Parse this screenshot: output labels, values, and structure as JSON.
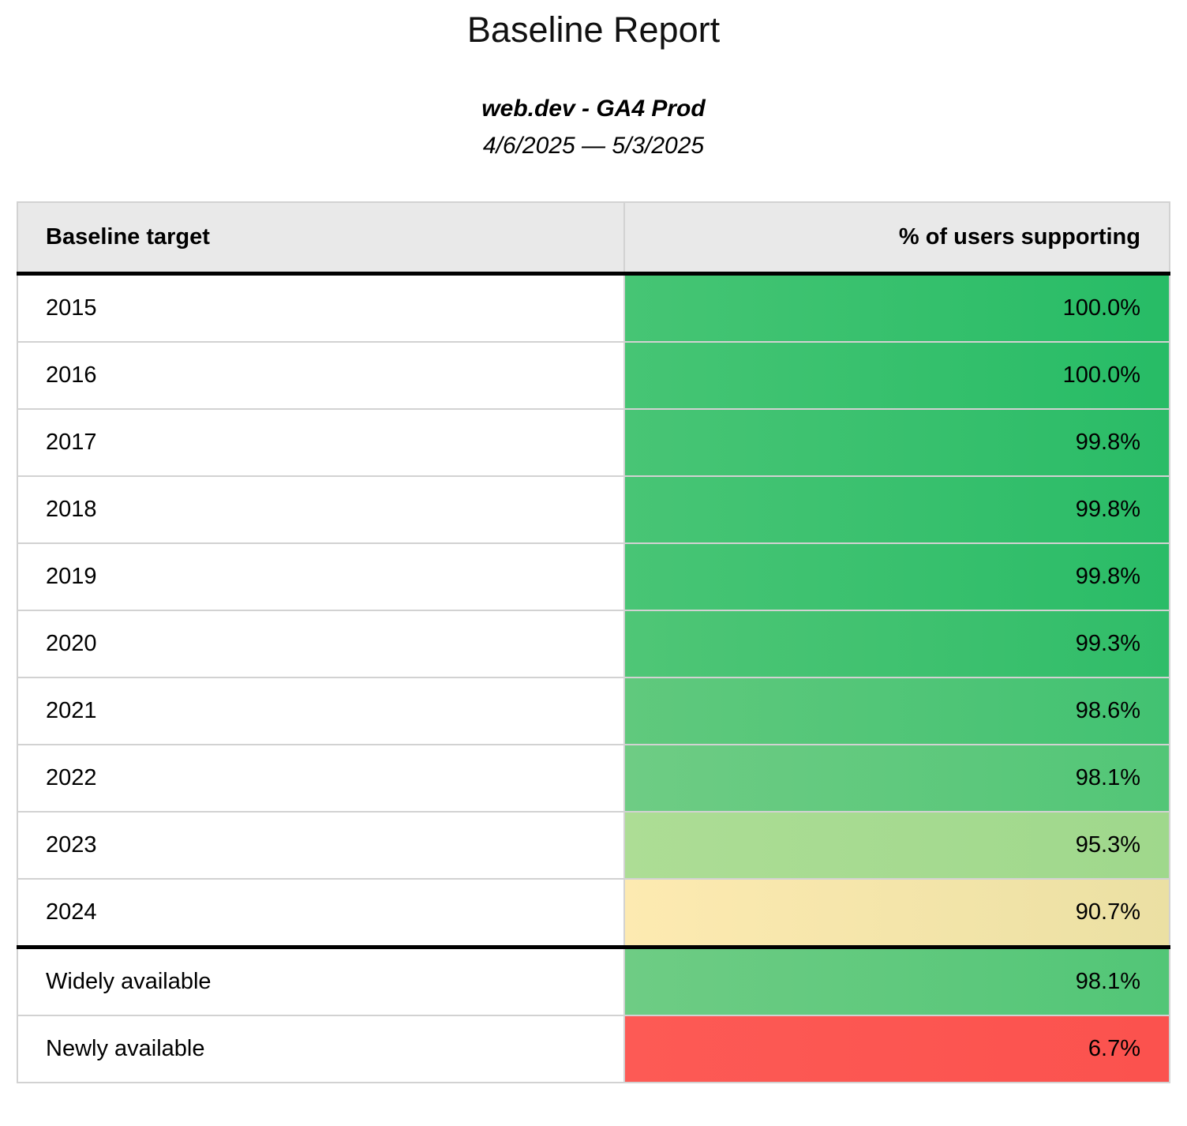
{
  "page": {
    "background": "#ffffff",
    "text_color": "#000000"
  },
  "header": {
    "title": "Baseline Report",
    "subtitle": "web.dev - GA4 Prod",
    "date_range": "4/6/2025 — 5/3/2025"
  },
  "table": {
    "style": {
      "header_background": "#e9e9e9",
      "divider_color": "#d2d2d2",
      "section_border_color": "#000000"
    },
    "columns": [
      {
        "label": "Baseline target",
        "align": "left"
      },
      {
        "label": "% of users supporting",
        "align": "right"
      }
    ],
    "rows": [
      {
        "target": "2015",
        "value": "100.0%",
        "group": "year",
        "bg_left": "#46c574",
        "bg_right": "#27bc66"
      },
      {
        "target": "2016",
        "value": "100.0%",
        "group": "year",
        "bg_left": "#46c574",
        "bg_right": "#27bc66"
      },
      {
        "target": "2017",
        "value": "99.8%",
        "group": "year",
        "bg_left": "#48c575",
        "bg_right": "#2abc67"
      },
      {
        "target": "2018",
        "value": "99.8%",
        "group": "year",
        "bg_left": "#48c575",
        "bg_right": "#2abc67"
      },
      {
        "target": "2019",
        "value": "99.8%",
        "group": "year",
        "bg_left": "#48c575",
        "bg_right": "#2abc67"
      },
      {
        "target": "2020",
        "value": "99.3%",
        "group": "year",
        "bg_left": "#4fc676",
        "bg_right": "#30bd69"
      },
      {
        "target": "2021",
        "value": "98.6%",
        "group": "year",
        "bg_left": "#60c97d",
        "bg_right": "#42c272"
      },
      {
        "target": "2022",
        "value": "98.1%",
        "group": "year",
        "bg_left": "#6ecc84",
        "bg_right": "#52c677"
      },
      {
        "target": "2023",
        "value": "95.3%",
        "group": "year",
        "bg_left": "#addd95",
        "bg_right": "#9fd88c"
      },
      {
        "target": "2024",
        "value": "90.7%",
        "group": "year",
        "bg_left": "#fdeab1",
        "bg_right": "#ebe0a3"
      },
      {
        "target": "Widely available",
        "value": "98.1%",
        "group": "status",
        "bg_left": "#6ecc84",
        "bg_right": "#52c677"
      },
      {
        "target": "Newly available",
        "value": "6.7%",
        "group": "status",
        "bg_left": "#fd5a55",
        "bg_right": "#fb524e"
      }
    ]
  }
}
